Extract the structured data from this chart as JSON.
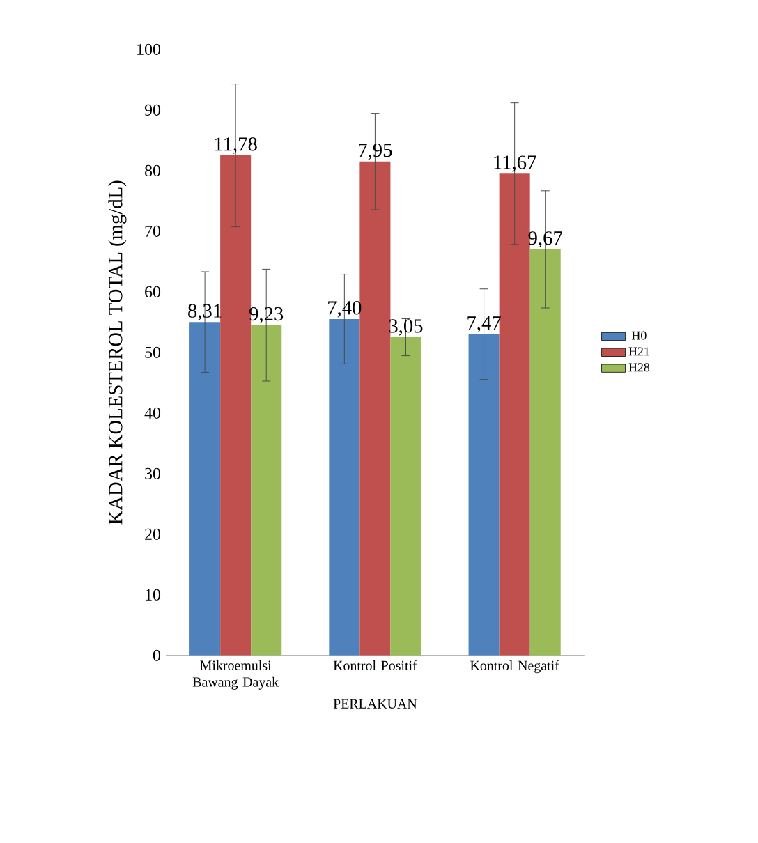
{
  "chart_data": {
    "type": "bar",
    "ylabel": "KADAR KOLESTEROL TOTAL (mg/dL)",
    "xlabel": "PERLAKUAN",
    "categories": [
      "Mikroemulsi Bawang Dayak",
      "Kontrol Positif",
      "Kontrol Negatif"
    ],
    "series": [
      {
        "name": "H0",
        "color": "#4f81bd",
        "values": [
          55,
          55.5,
          53
        ],
        "errors": [
          8.31,
          7.4,
          7.47
        ]
      },
      {
        "name": "H21",
        "color": "#c0504d",
        "values": [
          82.5,
          81.5,
          79.5
        ],
        "errors": [
          11.78,
          7.95,
          11.67
        ]
      },
      {
        "name": "H28",
        "color": "#9bbb59",
        "values": [
          54.5,
          52.5,
          67
        ],
        "errors": [
          9.23,
          3.05,
          9.67
        ]
      }
    ],
    "ylim": [
      0,
      100
    ],
    "yticks": [
      0,
      10,
      20,
      30,
      40,
      50,
      60,
      70,
      80,
      90,
      100
    ],
    "grid": false,
    "legend": "right",
    "annotations": [
      "8,31",
      "11,78",
      "9,23",
      "7,40",
      "7,95",
      "3,05",
      "7,47",
      "11,67",
      "9,67"
    ]
  }
}
